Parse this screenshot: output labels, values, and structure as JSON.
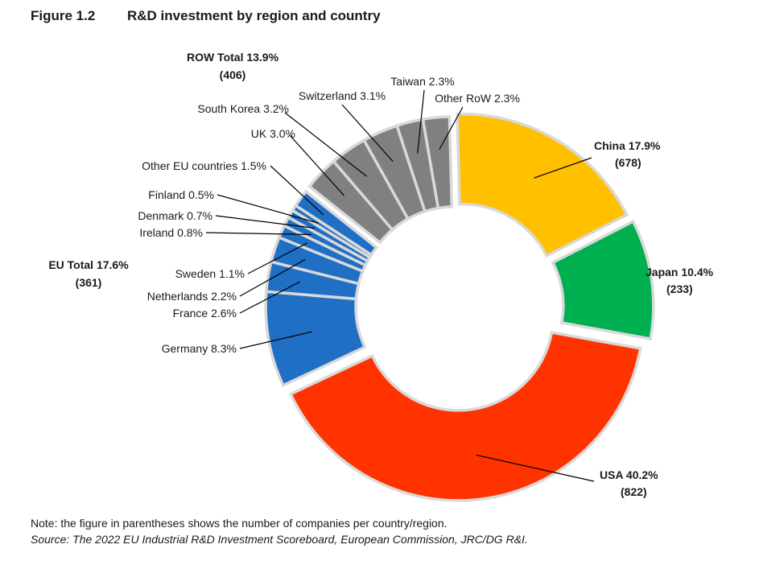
{
  "figure": {
    "number": "Figure 1.2",
    "title": "R&D investment by region and country"
  },
  "chart_data": {
    "type": "pie",
    "variant": "exploded donut",
    "slices": [
      {
        "name": "China",
        "value": 17.9,
        "count": 678,
        "group": "China",
        "color": "#FFC000",
        "label": "China 17.9%",
        "count_label": "(678)",
        "label_color": "#C0504D"
      },
      {
        "name": "Japan",
        "value": 10.4,
        "count": 233,
        "group": "Japan",
        "color": "#00B050",
        "label": "Japan 10.4%",
        "count_label": "(233)",
        "label_color": "#00B050"
      },
      {
        "name": "USA",
        "value": 40.2,
        "count": 822,
        "group": "USA",
        "color": "#FF3300",
        "label": "USA 40.2%",
        "count_label": "(822)",
        "label_color": "#E00000"
      },
      {
        "name": "Germany",
        "value": 8.3,
        "group": "EU",
        "color": "#1F6FC5",
        "label": "Germany 8.3%"
      },
      {
        "name": "France",
        "value": 2.6,
        "group": "EU",
        "color": "#1F6FC5",
        "label": "France 2.6%"
      },
      {
        "name": "Netherlands",
        "value": 2.2,
        "group": "EU",
        "color": "#1F6FC5",
        "label": "Netherlands 2.2%"
      },
      {
        "name": "Sweden",
        "value": 1.1,
        "group": "EU",
        "color": "#1F6FC5",
        "label": "Sweden 1.1%"
      },
      {
        "name": "Ireland",
        "value": 0.8,
        "group": "EU",
        "color": "#1F6FC5",
        "label": "Ireland 0.8%"
      },
      {
        "name": "Denmark",
        "value": 0.7,
        "group": "EU",
        "color": "#1F6FC5",
        "label": "Denmark 0.7%"
      },
      {
        "name": "Finland",
        "value": 0.5,
        "group": "EU",
        "color": "#1F6FC5",
        "label": "Finland 0.5%"
      },
      {
        "name": "Other EU countries",
        "value": 1.5,
        "group": "EU",
        "color": "#1F6FC5",
        "label": "Other EU countries 1.5%"
      },
      {
        "name": "UK",
        "value": 3.0,
        "group": "ROW",
        "color": "#808080",
        "label": "UK 3.0%"
      },
      {
        "name": "South Korea",
        "value": 3.2,
        "group": "ROW",
        "color": "#808080",
        "label": "South Korea 3.2%"
      },
      {
        "name": "Switzerland",
        "value": 3.1,
        "group": "ROW",
        "color": "#808080",
        "label": "Switzerland 3.1%"
      },
      {
        "name": "Taiwan",
        "value": 2.3,
        "group": "ROW",
        "color": "#808080",
        "label": "Taiwan 2.3%"
      },
      {
        "name": "Other RoW",
        "value": 2.3,
        "group": "ROW",
        "color": "#808080",
        "label": "Other RoW 2.3%"
      }
    ],
    "group_totals": [
      {
        "group": "EU",
        "line1": "EU  Total 17.6%",
        "line2": "(361)",
        "color": "#4F81BD"
      },
      {
        "group": "ROW",
        "line1": "ROW Total 13.9%",
        "line2": "(406)",
        "color": "#948A54"
      }
    ]
  },
  "footer": {
    "note": "Note: the figure in parentheses shows the number of companies per country/region.",
    "source": "Source: The 2022 EU Industrial R&D Investment Scoreboard, European Commission, JRC/DG R&I."
  }
}
